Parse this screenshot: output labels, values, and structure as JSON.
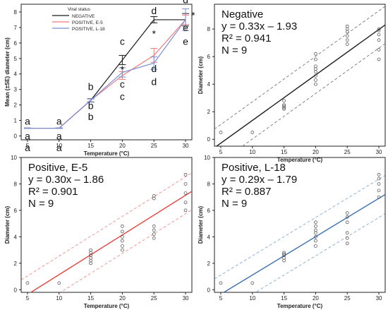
{
  "chart_data": [
    {
      "id": "p1",
      "type": "line",
      "xlabel": "Temperature (°C)",
      "ylabel": "Mean (±SE) diameter (cm)",
      "xlim": [
        4,
        31
      ],
      "ylim": [
        -0.25,
        8.5
      ],
      "xticks": [
        5,
        10,
        15,
        20,
        25,
        30
      ],
      "yticks": [
        0,
        1,
        2,
        3,
        4,
        5,
        6,
        7,
        8
      ],
      "legend": {
        "title": "Viral status",
        "position": "top-left"
      },
      "x": [
        5,
        10,
        15,
        20,
        25,
        30
      ],
      "series": [
        {
          "name": "NEGATIVE",
          "color": "#1a1a1a",
          "values": [
            0.5,
            0.5,
            2.3,
            4.9,
            7.5,
            7.5
          ],
          "se": [
            0.02,
            0.02,
            0.1,
            0.3,
            0.2,
            0.4
          ]
        },
        {
          "name": "POSITIVE, E-5",
          "color": "#f07a7a",
          "values": [
            0.5,
            0.5,
            2.3,
            3.9,
            5.2,
            7.5
          ],
          "se": [
            0.02,
            0.02,
            0.12,
            0.25,
            0.45,
            0.3
          ]
        },
        {
          "name": "POSITIVE, L-18",
          "color": "#7a8fd6",
          "values": [
            0.5,
            0.5,
            2.3,
            4.1,
            4.7,
            7.5
          ],
          "se": [
            0.02,
            0.02,
            0.12,
            0.3,
            0.4,
            0.7
          ]
        }
      ],
      "letters": [
        {
          "text": "a",
          "x": 5,
          "y": 0.95
        },
        {
          "text": "a",
          "x": 5,
          "y": 0.0
        },
        {
          "text": "a",
          "x": 5,
          "y": -0.75
        },
        {
          "text": "a",
          "x": 10,
          "y": 0.95
        },
        {
          "text": "a",
          "x": 10,
          "y": 0.0
        },
        {
          "text": "a",
          "x": 10,
          "y": -0.75
        },
        {
          "text": "b",
          "x": 15,
          "y": 3.2
        },
        {
          "text": "b",
          "x": 15,
          "y": 1.95
        },
        {
          "text": "b",
          "x": 15,
          "y": 1.25
        },
        {
          "text": "c",
          "x": 20,
          "y": 6.1
        },
        {
          "text": "c",
          "x": 20,
          "y": 3.35
        },
        {
          "text": "c",
          "x": 20,
          "y": 2.55
        },
        {
          "text": "*",
          "x": 20,
          "y": 4.3
        },
        {
          "text": "d",
          "x": 25,
          "y": 8.1
        },
        {
          "text": "*",
          "x": 25,
          "y": 6.6
        },
        {
          "text": "d",
          "x": 25,
          "y": 4.35
        },
        {
          "text": "d",
          "x": 25,
          "y": 3.5
        },
        {
          "text": "d",
          "x": 30,
          "y": 8.8
        },
        {
          "text": "e",
          "x": 30,
          "y": 7.0
        },
        {
          "text": "e",
          "x": 30,
          "y": 6.1
        },
        {
          "text": "*",
          "x": 31.2,
          "y": 7.8
        }
      ]
    },
    {
      "id": "p2",
      "type": "scatter",
      "xlabel": "Temperature (°C)",
      "ylabel": "Diameter (cm)",
      "xlim": [
        4,
        31
      ],
      "ylim": [
        -0.5,
        9.8
      ],
      "xticks": [
        5,
        10,
        15,
        20,
        25,
        30
      ],
      "yticks": [
        0,
        2,
        4,
        6,
        8
      ],
      "color": "#1a1a1a",
      "fit": {
        "slope": 0.33,
        "intercept": -1.93,
        "band": 1.35
      },
      "annotation": [
        "Negative",
        "y = 0.33x – 1.93",
        "R² = 0.941",
        "N = 9"
      ],
      "points": [
        [
          5,
          0.5
        ],
        [
          10,
          0.5
        ],
        [
          15,
          2.2
        ],
        [
          15,
          2.3
        ],
        [
          15,
          2.4
        ],
        [
          15,
          2.5
        ],
        [
          15,
          2.8
        ],
        [
          20,
          4.0
        ],
        [
          20,
          4.3
        ],
        [
          20,
          4.6
        ],
        [
          20,
          4.9
        ],
        [
          20,
          5.1
        ],
        [
          20,
          5.3
        ],
        [
          20,
          5.8
        ],
        [
          20,
          6.2
        ],
        [
          25,
          6.9
        ],
        [
          25,
          7.2
        ],
        [
          25,
          7.5
        ],
        [
          25,
          7.8
        ],
        [
          25,
          8.0
        ],
        [
          25,
          8.2
        ],
        [
          30,
          5.8
        ],
        [
          30,
          6.5
        ],
        [
          30,
          7.2
        ],
        [
          30,
          7.6
        ],
        [
          30,
          7.9
        ],
        [
          30,
          8.0
        ]
      ]
    },
    {
      "id": "p3",
      "type": "scatter",
      "xlabel": "Temperature (°C)",
      "ylabel": "Diameter (cm)",
      "xlim": [
        4,
        31
      ],
      "ylim": [
        -0.2,
        10
      ],
      "xticks": [
        5,
        10,
        15,
        20,
        25,
        30
      ],
      "yticks": [
        0,
        2,
        4,
        6,
        8,
        10
      ],
      "color": "#e8403a",
      "fit": {
        "slope": 0.3,
        "intercept": -1.86,
        "band": 1.4
      },
      "annotation": [
        "Positive, E-5",
        "y = 0.30x – 1.86",
        "R² = 0.901",
        "N = 9"
      ],
      "points": [
        [
          5,
          0.5
        ],
        [
          10,
          0.5
        ],
        [
          15,
          2.0
        ],
        [
          15,
          2.2
        ],
        [
          15,
          2.4
        ],
        [
          15,
          2.6
        ],
        [
          15,
          2.8
        ],
        [
          15,
          3.0
        ],
        [
          20,
          3.0
        ],
        [
          20,
          3.3
        ],
        [
          20,
          3.7
        ],
        [
          20,
          4.0
        ],
        [
          20,
          4.4
        ],
        [
          20,
          4.8
        ],
        [
          25,
          3.9
        ],
        [
          25,
          4.2
        ],
        [
          25,
          4.5
        ],
        [
          25,
          4.8
        ],
        [
          25,
          6.9
        ],
        [
          25,
          7.1
        ],
        [
          30,
          6.0
        ],
        [
          30,
          6.6
        ],
        [
          30,
          7.3
        ],
        [
          30,
          8.0
        ],
        [
          30,
          8.7
        ]
      ]
    },
    {
      "id": "p4",
      "type": "scatter",
      "xlabel": "Temperature (°C)",
      "ylabel": "Diameter (cm)",
      "xlim": [
        4,
        31
      ],
      "ylim": [
        -0.2,
        10
      ],
      "xticks": [
        5,
        10,
        15,
        20,
        25,
        30
      ],
      "yticks": [
        0,
        2,
        4,
        6,
        8,
        10
      ],
      "color": "#3a6fb0",
      "fit": {
        "slope": 0.29,
        "intercept": -1.79,
        "band": 1.45
      },
      "annotation": [
        "Positive, L-18",
        "y = 0.29x – 1.79",
        "R² = 0.887",
        "N = 9"
      ],
      "points": [
        [
          5,
          0.5
        ],
        [
          10,
          0.5
        ],
        [
          15,
          2.2
        ],
        [
          15,
          2.4
        ],
        [
          15,
          2.6
        ],
        [
          15,
          2.7
        ],
        [
          15,
          2.8
        ],
        [
          20,
          3.3
        ],
        [
          20,
          3.7
        ],
        [
          20,
          4.0
        ],
        [
          20,
          4.3
        ],
        [
          20,
          4.5
        ],
        [
          20,
          4.8
        ],
        [
          20,
          5.1
        ],
        [
          25,
          3.5
        ],
        [
          25,
          3.9
        ],
        [
          25,
          4.3
        ],
        [
          25,
          5.1
        ],
        [
          25,
          5.5
        ],
        [
          25,
          5.8
        ],
        [
          30,
          7.0
        ],
        [
          30,
          7.5
        ],
        [
          30,
          8.0
        ],
        [
          30,
          8.4
        ],
        [
          30,
          8.7
        ]
      ]
    }
  ]
}
